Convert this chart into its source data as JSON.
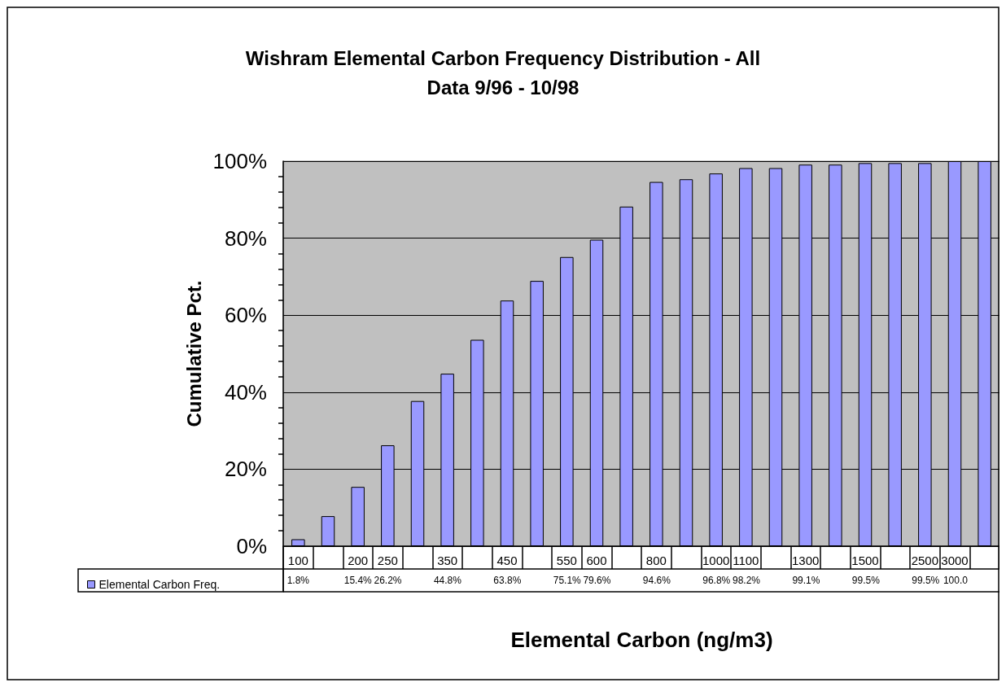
{
  "chart_data": {
    "type": "bar",
    "title": "Wishram Elemental Carbon Frequency Distribution - All\nData 9/96 - 10/98",
    "xlabel": "Elemental Carbon (ng/m3)",
    "ylabel": "Cumulative Pct.",
    "categories": [
      "100",
      null,
      "200",
      "250",
      null,
      "350",
      null,
      "450",
      null,
      "550",
      "600",
      null,
      "800",
      null,
      "1000",
      "1100",
      null,
      "1300",
      null,
      "1500",
      null,
      "2500",
      "3000",
      null
    ],
    "series": [
      {
        "name": "Elemental Carbon Freq.",
        "color": "#9999ff",
        "values": [
          1.8,
          7.8,
          15.4,
          26.2,
          37.7,
          44.8,
          53.6,
          63.8,
          68.9,
          75.1,
          79.6,
          88.2,
          94.6,
          95.3,
          96.8,
          98.2,
          98.2,
          99.1,
          99.1,
          99.5,
          99.5,
          99.5,
          100,
          100
        ],
        "value_labels": [
          "1.8%",
          null,
          "15.4%",
          "26.2%",
          null,
          "44.8%",
          null,
          "63.8%",
          null,
          "75.1%",
          "79.6%",
          null,
          "94.6%",
          null,
          "96.8%",
          "98.2%",
          null,
          "99.1%",
          null,
          "99.5%",
          null,
          "99.5%",
          "100.0",
          null
        ]
      }
    ],
    "ylim": [
      0,
      100
    ],
    "yticks": [
      {
        "value": 0,
        "label": "0%"
      },
      {
        "value": 20,
        "label": "20%"
      },
      {
        "value": 40,
        "label": "40%"
      },
      {
        "value": 60,
        "label": "60%"
      },
      {
        "value": 80,
        "label": "80%"
      },
      {
        "value": 100,
        "label": "100%"
      }
    ],
    "grid": "y",
    "legend": "bottom left"
  }
}
